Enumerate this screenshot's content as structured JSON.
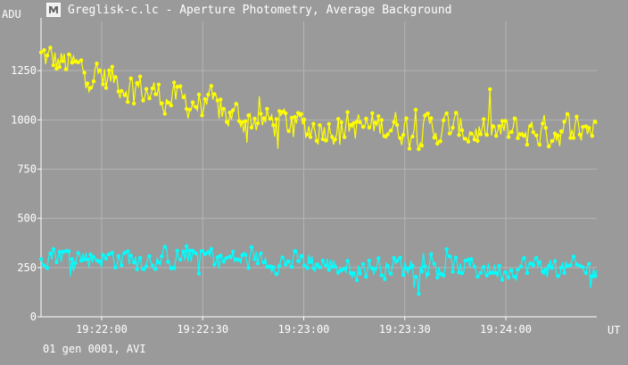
{
  "window": {
    "title": "Greglisk-c.lc - Aperture Photometry, Average Background",
    "footer": "01 gen 0001, AVI"
  },
  "icon": {
    "name": "app-icon"
  },
  "colors": {
    "background": "#9a9a9a",
    "grid": "#b4b4b4",
    "axis": "#ffffff",
    "series_yellow": "#ffff00",
    "series_cyan": "#00ffff"
  },
  "chart_data": {
    "type": "line",
    "title": "Greglisk-c.lc - Aperture Photometry, Average Background",
    "xlabel": "UT",
    "ylabel": "ADU",
    "xlim": [
      "19:21:42",
      "19:24:27"
    ],
    "ylim": [
      0,
      1500
    ],
    "x_ticks": [
      "19:22:00",
      "19:22:30",
      "19:23:00",
      "19:23:30",
      "19:24:00"
    ],
    "y_ticks": [
      "0",
      "250",
      "500",
      "750",
      "1000",
      "1250"
    ],
    "grid": true,
    "series": [
      {
        "color": "#ffff00",
        "description_points": [
          {
            "t": "19:21:42",
            "y": 1320
          },
          {
            "t": "19:21:50",
            "y": 1280
          },
          {
            "t": "19:21:58",
            "y": 1230
          },
          {
            "t": "19:22:06",
            "y": 1190
          },
          {
            "t": "19:22:14",
            "y": 1140
          },
          {
            "t": "19:22:22",
            "y": 1100
          },
          {
            "t": "19:22:30",
            "y": 1080
          },
          {
            "t": "19:22:38",
            "y": 1020
          },
          {
            "t": "19:22:46",
            "y": 1000
          },
          {
            "t": "19:22:54",
            "y": 980
          },
          {
            "t": "19:23:02",
            "y": 960
          },
          {
            "t": "19:23:10",
            "y": 970
          },
          {
            "t": "19:23:18",
            "y": 960
          },
          {
            "t": "19:23:26",
            "y": 975
          },
          {
            "t": "19:23:34",
            "y": 950
          },
          {
            "t": "19:23:42",
            "y": 960
          },
          {
            "t": "19:23:50",
            "y": 945
          },
          {
            "t": "19:23:58",
            "y": 930
          },
          {
            "t": "19:24:06",
            "y": 940
          },
          {
            "t": "19:24:14",
            "y": 940
          },
          {
            "t": "19:24:22",
            "y": 960
          }
        ]
      },
      {
        "color": "#00ffff",
        "description_points": [
          {
            "t": "19:21:42",
            "y": 330
          },
          {
            "t": "19:21:50",
            "y": 310
          },
          {
            "t": "19:21:58",
            "y": 300
          },
          {
            "t": "19:22:06",
            "y": 300
          },
          {
            "t": "19:22:14",
            "y": 290
          },
          {
            "t": "19:22:22",
            "y": 300
          },
          {
            "t": "19:22:30",
            "y": 310
          },
          {
            "t": "19:22:38",
            "y": 290
          },
          {
            "t": "19:22:46",
            "y": 290
          },
          {
            "t": "19:22:54",
            "y": 280
          },
          {
            "t": "19:23:02",
            "y": 270
          },
          {
            "t": "19:23:10",
            "y": 260
          },
          {
            "t": "19:23:18",
            "y": 250
          },
          {
            "t": "19:23:26",
            "y": 260
          },
          {
            "t": "19:23:34",
            "y": 260
          },
          {
            "t": "19:23:42",
            "y": 250
          },
          {
            "t": "19:23:50",
            "y": 250
          },
          {
            "t": "19:23:58",
            "y": 240
          },
          {
            "t": "19:24:06",
            "y": 260
          },
          {
            "t": "19:24:14",
            "y": 250
          },
          {
            "t": "19:24:22",
            "y": 240
          }
        ]
      }
    ]
  }
}
